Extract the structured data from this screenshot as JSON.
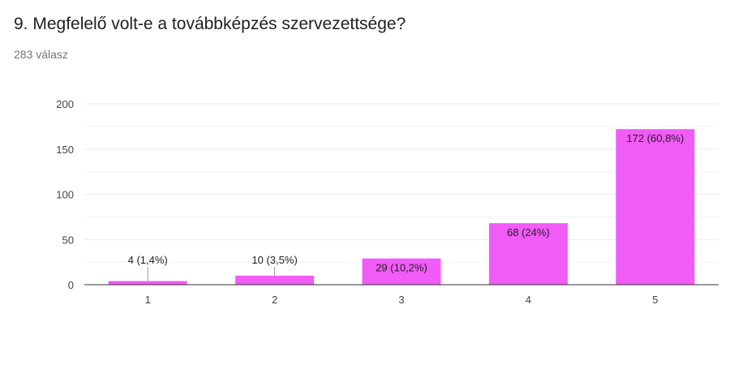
{
  "question": {
    "title": "9. Megfelelő volt-e a továbbképzés szervezettsége?",
    "response_count": "283 válasz"
  },
  "colors": {
    "bar": "#f15bf6",
    "grid": "#ebebeb",
    "axis": "#333333",
    "leader": "#999999"
  },
  "chart_data": {
    "type": "bar",
    "title": "",
    "xlabel": "",
    "ylabel": "",
    "categories": [
      "1",
      "2",
      "3",
      "4",
      "5"
    ],
    "values": [
      4,
      10,
      29,
      68,
      172
    ],
    "data_labels": [
      "4 (1,4%)",
      "10 (3,5%)",
      "29 (10,2%)",
      "68 (24%)",
      "172 (60,8%)"
    ],
    "ylim": [
      0,
      200
    ],
    "yticks": [
      0,
      50,
      100,
      150,
      200
    ],
    "minor_gridlines": true,
    "legend": "none"
  }
}
